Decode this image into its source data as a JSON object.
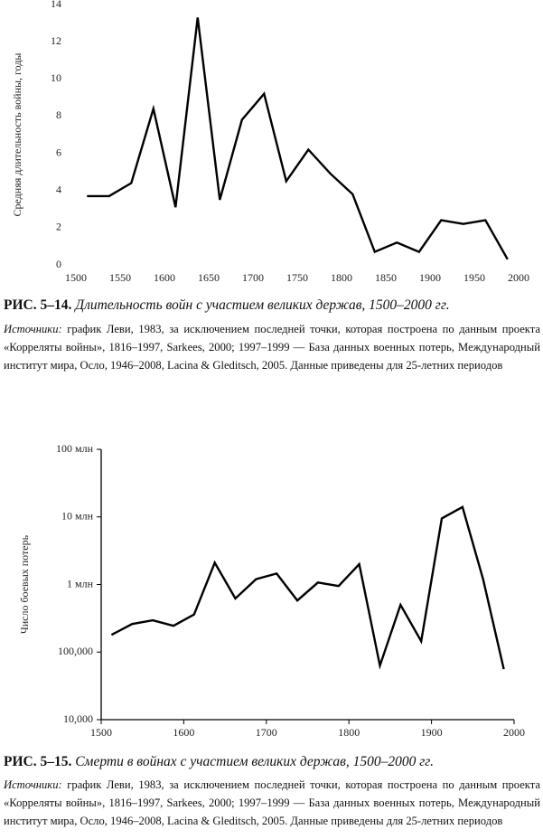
{
  "chart_data": [
    {
      "type": "line",
      "ylabel": "Средняя длительность войны, годы",
      "color": "#000000",
      "x": [
        1512.5,
        1537.5,
        1562.5,
        1587.5,
        1612.5,
        1637.5,
        1662.5,
        1687.5,
        1712.5,
        1737.5,
        1762.5,
        1787.5,
        1812.5,
        1837.5,
        1862.5,
        1887.5,
        1912.5,
        1937.5,
        1962.5,
        1987.5
      ],
      "values": [
        3.7,
        3.7,
        4.4,
        8.4,
        3.1,
        13.3,
        3.5,
        7.8,
        9.2,
        4.5,
        6.2,
        4.9,
        3.8,
        0.7,
        1.2,
        0.7,
        2.4,
        2.2,
        2.4,
        0.3
      ],
      "xlim": [
        1500,
        2000
      ],
      "xticks": [
        1500,
        1550,
        1600,
        1650,
        1700,
        1750,
        1800,
        1850,
        1900,
        1950,
        2000
      ],
      "ylim": [
        0,
        14
      ],
      "yticks": [
        0,
        2,
        4,
        6,
        8,
        10,
        12,
        14
      ],
      "log_scale": false,
      "frame": false
    },
    {
      "type": "line",
      "ylabel": "Число боевых потерь",
      "color": "#000000",
      "x": [
        1512.5,
        1537.5,
        1562.5,
        1587.5,
        1612.5,
        1637.5,
        1662.5,
        1687.5,
        1712.5,
        1737.5,
        1762.5,
        1787.5,
        1812.5,
        1837.5,
        1862.5,
        1887.5,
        1912.5,
        1937.5,
        1962.5,
        1987.5
      ],
      "values": [
        180000,
        260000,
        295000,
        245000,
        360000,
        2100000,
        620000,
        1200000,
        1450000,
        580000,
        1070000,
        950000,
        2000000,
        63000,
        500000,
        145000,
        9500000,
        14000000,
        1200000,
        56000
      ],
      "xlim": [
        1500,
        2000
      ],
      "xticks": [
        1500,
        1600,
        1700,
        1800,
        1900,
        2000
      ],
      "ylim": [
        10000,
        100000000
      ],
      "yticks": [
        {
          "value": 10000,
          "label": "10,000"
        },
        {
          "value": 100000,
          "label": "100,000"
        },
        {
          "value": 1000000,
          "label": "1 млн"
        },
        {
          "value": 10000000,
          "label": "10 млн"
        },
        {
          "value": 100000000,
          "label": "100 млн"
        }
      ],
      "log_scale": true,
      "frame": true
    }
  ],
  "figures": [
    {
      "label": "РИС. 5–14.",
      "title": "Длительность войн с участием великих держав, 1500–2000 гг.",
      "source_label": "Источники:",
      "source_text": "график Леви, 1983, за исключением последней точки, которая построена по данным проекта «Корреляты войны», 1816–1997, Sarkees, 2000; 1997–1999 — База данных военных потерь, Международный институт мира, Осло, 1946–2008, Lacina & Gleditsch, 2005. Данные приведены для 25-летних периодов"
    },
    {
      "label": "РИС. 5–15.",
      "title": "Смерти в войнах с участием великих держав, 1500–2000 гг.",
      "source_label": "Источники:",
      "source_text": "график Леви, 1983, за исключением последней точки, которая построена по данным проекта «Корреляты войны», 1816–1997, Sarkees, 2000; 1997–1999 — База данных военных потерь, Международный институт мира, Осло, 1946–2008, Lacina & Gleditsch, 2005. Данные приведены для 25-летних периодов"
    }
  ]
}
